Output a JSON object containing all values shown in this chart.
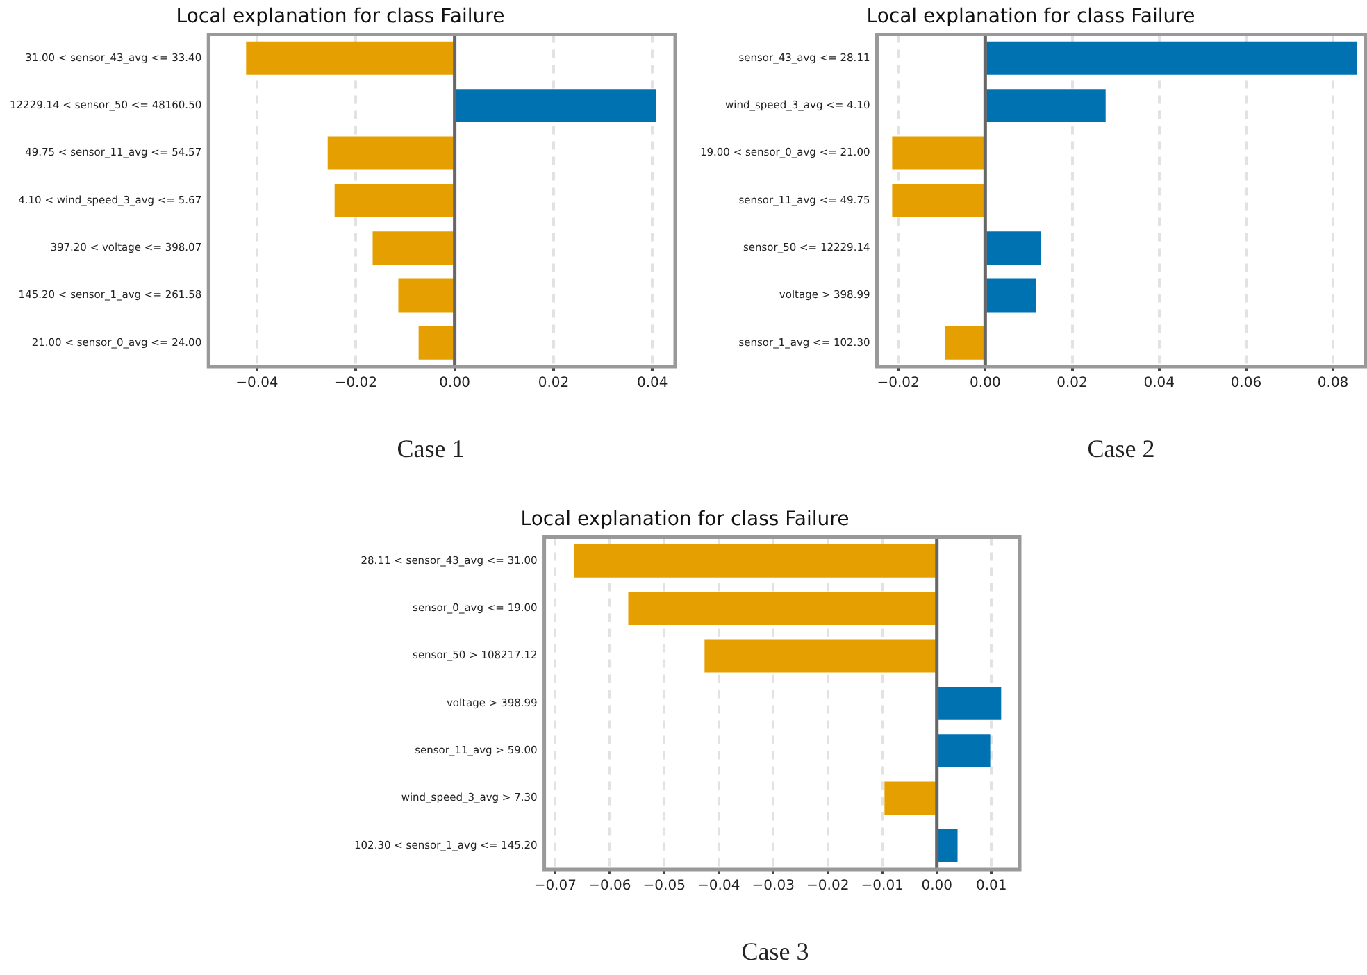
{
  "chart_data": [
    {
      "type": "bar",
      "orientation": "horizontal",
      "title": "Local explanation for class Failure",
      "categories": [
        "31.00 < sensor_43_avg <= 33.40",
        "12229.14 < sensor_50 <= 48160.50",
        "49.75 < sensor_11_avg <= 54.57",
        "4.10 < wind_speed_3_avg <= 5.67",
        "397.20 < voltage <= 398.07",
        "145.20 < sensor_1_avg <= 261.58",
        "21.00 < sensor_0_avg <= 24.00"
      ],
      "values": [
        -0.0422,
        0.0408,
        -0.0257,
        -0.0243,
        -0.0166,
        -0.0114,
        -0.0073
      ],
      "colors": [
        "#e69f00",
        "#0072b2",
        "#e69f00",
        "#e69f00",
        "#e69f00",
        "#e69f00",
        "#e69f00"
      ],
      "xlim": [
        -0.0498,
        0.0446
      ],
      "xticks": [
        {
          "value": -0.04,
          "label": "−0.04"
        },
        {
          "value": -0.02,
          "label": "−0.02"
        },
        {
          "value": 0,
          "label": "0.00"
        },
        {
          "value": 0.02,
          "label": "0.02"
        },
        {
          "value": 0.04,
          "label": "0.04"
        }
      ],
      "grid": "x",
      "ref_lines": [
        {
          "axis": "x",
          "value": 0,
          "color": "#666666"
        }
      ],
      "annotations": [
        "Case 1"
      ]
    },
    {
      "type": "bar",
      "orientation": "horizontal",
      "title": "Local explanation for class Failure",
      "categories": [
        "sensor_43_avg <= 28.11",
        "wind_speed_3_avg <= 4.10",
        "19.00 < sensor_0_avg <= 21.00",
        "sensor_11_avg <= 49.75",
        "sensor_50 <= 12229.14",
        "voltage > 398.99",
        "sensor_1_avg <= 102.30"
      ],
      "values": [
        0.0855,
        0.0277,
        -0.0214,
        -0.0214,
        0.0128,
        0.0117,
        -0.0093
      ],
      "colors": [
        "#0072b2",
        "#0072b2",
        "#e69f00",
        "#e69f00",
        "#0072b2",
        "#0072b2",
        "#e69f00"
      ],
      "xlim": [
        -0.0249,
        0.0875
      ],
      "xticks": [
        {
          "value": -0.02,
          "label": "−0.02"
        },
        {
          "value": 0,
          "label": "0.00"
        },
        {
          "value": 0.02,
          "label": "0.02"
        },
        {
          "value": 0.04,
          "label": "0.04"
        },
        {
          "value": 0.06,
          "label": "0.06"
        },
        {
          "value": 0.08,
          "label": "0.08"
        }
      ],
      "grid": "x",
      "ref_lines": [
        {
          "axis": "x",
          "value": 0,
          "color": "#666666"
        }
      ],
      "annotations": [
        "Case 2"
      ]
    },
    {
      "type": "bar",
      "orientation": "horizontal",
      "title": "Local explanation for class Failure",
      "categories": [
        "28.11 < sensor_43_avg <= 31.00",
        "sensor_0_avg <= 19.00",
        "sensor_50 > 108217.12",
        "voltage > 398.99",
        "sensor_11_avg > 59.00",
        "wind_speed_3_avg > 7.30",
        "102.30 < sensor_1_avg <= 145.20"
      ],
      "values": [
        -0.0666,
        -0.0566,
        -0.0426,
        0.0118,
        0.0098,
        -0.0096,
        0.0038
      ],
      "colors": [
        "#e69f00",
        "#e69f00",
        "#e69f00",
        "#0072b2",
        "#0072b2",
        "#e69f00",
        "#0072b2"
      ],
      "xlim": [
        -0.072,
        0.0152
      ],
      "xticks": [
        {
          "value": -0.07,
          "label": "−0.07"
        },
        {
          "value": -0.06,
          "label": "−0.06"
        },
        {
          "value": -0.05,
          "label": "−0.05"
        },
        {
          "value": -0.04,
          "label": "−0.04"
        },
        {
          "value": -0.03,
          "label": "−0.03"
        },
        {
          "value": -0.02,
          "label": "−0.02"
        },
        {
          "value": -0.01,
          "label": "−0.01"
        },
        {
          "value": 0,
          "label": "0.00"
        },
        {
          "value": 0.01,
          "label": "0.01"
        }
      ],
      "grid": "x",
      "ref_lines": [
        {
          "axis": "x",
          "value": 0,
          "color": "#666666"
        }
      ],
      "annotations": [
        "Case 3"
      ]
    }
  ]
}
